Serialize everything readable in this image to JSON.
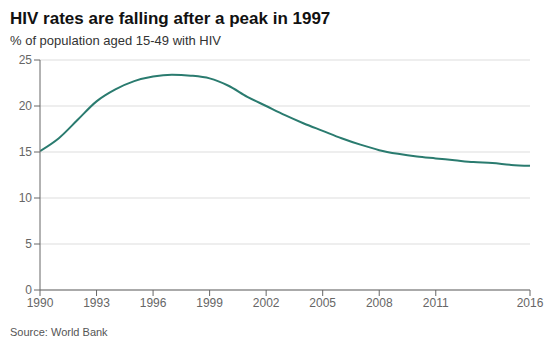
{
  "chart_data": {
    "type": "line",
    "title": "HIV rates are falling after a peak in 1997",
    "subtitle": "% of population aged 15-49 with HIV",
    "source": "Source: World Bank",
    "x": [
      1990,
      1991,
      1992,
      1993,
      1994,
      1995,
      1996,
      1997,
      1998,
      1999,
      2000,
      2001,
      2002,
      2003,
      2004,
      2005,
      2006,
      2007,
      2008,
      2009,
      2010,
      2011,
      2012,
      2013,
      2014,
      2015,
      2016
    ],
    "values": [
      15.1,
      16.5,
      18.5,
      20.5,
      21.8,
      22.7,
      23.2,
      23.4,
      23.3,
      23.0,
      22.2,
      21.0,
      20.0,
      19.0,
      18.1,
      17.3,
      16.5,
      15.8,
      15.2,
      14.8,
      14.5,
      14.3,
      14.1,
      13.9,
      13.8,
      13.6,
      13.5
    ],
    "color": "#2A7B6F",
    "xlim": [
      1990,
      2016
    ],
    "ylim": [
      0,
      25
    ],
    "xticks": [
      1990,
      1993,
      1996,
      1999,
      2002,
      2005,
      2008,
      2011,
      2016
    ],
    "yticks": [
      0,
      5,
      10,
      15,
      20,
      25
    ],
    "grid": "y"
  }
}
